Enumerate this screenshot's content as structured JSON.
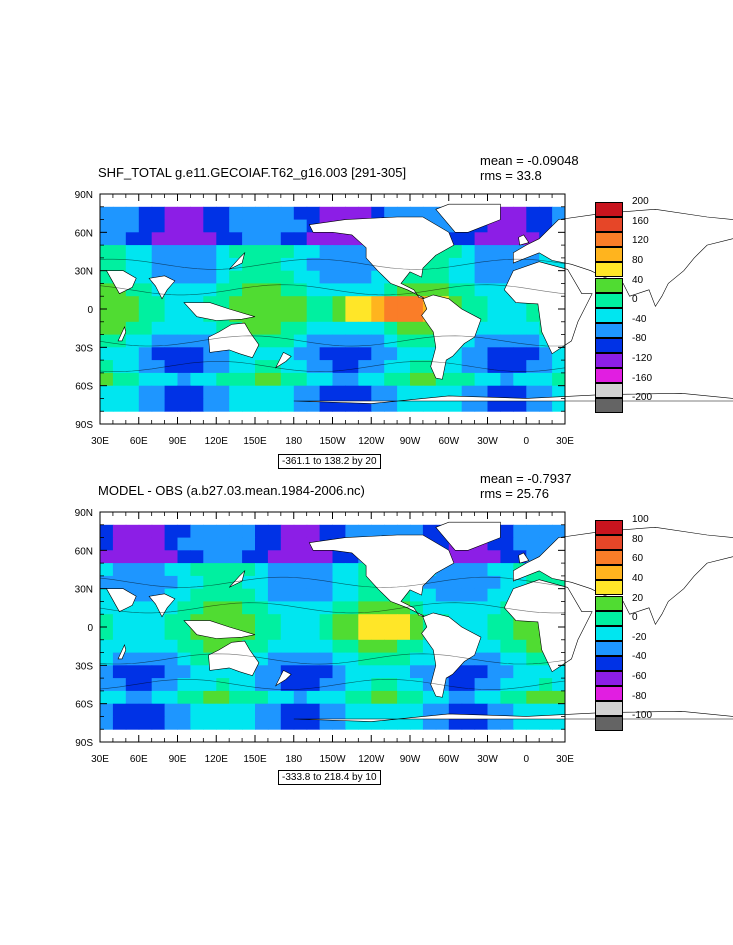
{
  "panels": [
    {
      "title": "SHF_TOTAL g.e11.GECOIAF.T62_g16.003 [291-305]",
      "mean_label": "mean = -0.09048",
      "rms_label": "rms = 33.8",
      "range_label": "-361.1 to 138.2 by 20",
      "colorbar_labels": [
        "200",
        "160",
        "120",
        "80",
        "40",
        "0",
        "-40",
        "-80",
        "-120",
        "-160",
        "-200"
      ],
      "colorbar_colors": [
        "#c8141e",
        "#e64628",
        "#fa7d28",
        "#ffb41e",
        "#ffe628",
        "#50dc32",
        "#00f0a0",
        "#00e6f0",
        "#1e96ff",
        "#0032e6",
        "#8c1ee6",
        "#e11ee1",
        "#d2d2d2",
        "#646464"
      ]
    },
    {
      "title": "MODEL - OBS (a.b27.03.mean.1984-2006.nc)",
      "mean_label": "mean = -0.7937",
      "rms_label": "rms = 25.76",
      "range_label": "-333.8 to 218.4 by 10",
      "colorbar_labels": [
        "100",
        "80",
        "60",
        "40",
        "20",
        "0",
        "-20",
        "-40",
        "-60",
        "-80",
        "-100"
      ],
      "colorbar_colors": [
        "#c8141e",
        "#e64628",
        "#fa7d28",
        "#ffb41e",
        "#ffe628",
        "#50dc32",
        "#00f0a0",
        "#00e6f0",
        "#1e96ff",
        "#0032e6",
        "#8c1ee6",
        "#e11ee1",
        "#d2d2d2",
        "#646464"
      ]
    }
  ],
  "chart_data": [
    {
      "type": "heatmap",
      "title": "SHF_TOTAL g.e11.GECOIAF.T62_g16.003 [291-305]",
      "x_tick_labels": [
        "30E",
        "60E",
        "90E",
        "120E",
        "150E",
        "180",
        "150W",
        "120W",
        "90W",
        "60W",
        "30W",
        "0",
        "30E"
      ],
      "y_tick_labels": [
        "90N",
        "60N",
        "30N",
        "0",
        "30S",
        "60S",
        "90S"
      ],
      "xlim": [
        30,
        390
      ],
      "ylim": [
        -90,
        90
      ],
      "colorbar_levels": [
        200,
        160,
        120,
        80,
        40,
        0,
        -40,
        -80,
        -120,
        -160,
        -200
      ],
      "mean": -0.09048,
      "rms": 33.8,
      "contour_range": [
        -361.1,
        138.2
      ],
      "contour_interval": 20,
      "legend_position": "right"
    },
    {
      "type": "heatmap",
      "title": "MODEL - OBS (a.b27.03.mean.1984-2006.nc)",
      "x_tick_labels": [
        "30E",
        "60E",
        "90E",
        "120E",
        "150E",
        "180",
        "150W",
        "120W",
        "90W",
        "60W",
        "30W",
        "0",
        "30E"
      ],
      "y_tick_labels": [
        "90N",
        "60N",
        "30N",
        "0",
        "30S",
        "60S",
        "90S"
      ],
      "xlim": [
        30,
        390
      ],
      "ylim": [
        -90,
        90
      ],
      "colorbar_levels": [
        100,
        80,
        60,
        40,
        20,
        0,
        -20,
        -40,
        -60,
        -80,
        -100
      ],
      "mean": -0.7937,
      "rms": 25.76,
      "contour_range": [
        -333.8,
        218.4
      ],
      "contour_interval": 10,
      "legend_position": "right"
    }
  ]
}
